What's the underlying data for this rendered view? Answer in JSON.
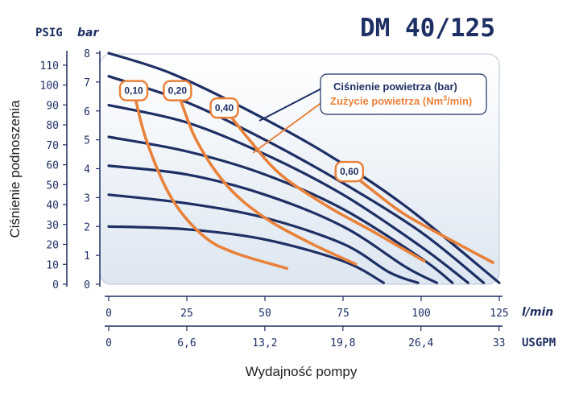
{
  "chart_data": {
    "type": "line",
    "title": "DM 40/125",
    "ylabel": "Ciśnienie podnoszenia",
    "xlabel": "Wydajność pompy",
    "y_units_left": "PSIG",
    "y_units_right": "bar",
    "x_units_primary": "l/min",
    "x_units_secondary": "USGPM",
    "xlim": [
      0,
      125
    ],
    "ylim": [
      0,
      8
    ],
    "y_ticks_bar": [
      "0",
      "1",
      "2",
      "3",
      "4",
      "5",
      "6",
      "7",
      "8"
    ],
    "y_ticks_psig": [
      "0",
      "10",
      "20",
      "30",
      "40",
      "50",
      "60",
      "70",
      "80",
      "90",
      "100",
      "110"
    ],
    "x_ticks_lmin": [
      "0",
      "25",
      "50",
      "75",
      "100",
      "125"
    ],
    "x_ticks_usgpm": [
      "0",
      "6,6",
      "13,2",
      "19,8",
      "26,4",
      "33"
    ],
    "legend": {
      "air_pressure": "Ciśnienie powietrza (bar)",
      "air_consumption_prefix": "Zużycie powietrza (Nm",
      "air_consumption_sup": "3",
      "air_consumption_suffix": "/min)"
    },
    "pressure_series": [
      {
        "points": [
          [
            0,
            8.0
          ],
          [
            20,
            7.3
          ],
          [
            45,
            6.0
          ],
          [
            70,
            4.5
          ],
          [
            95,
            2.7
          ],
          [
            125,
            0.05
          ]
        ]
      },
      {
        "points": [
          [
            0,
            7.2
          ],
          [
            25,
            6.3
          ],
          [
            50,
            5.0
          ],
          [
            75,
            3.5
          ],
          [
            100,
            1.8
          ],
          [
            120,
            0.05
          ]
        ]
      },
      {
        "points": [
          [
            0,
            6.2
          ],
          [
            25,
            5.6
          ],
          [
            50,
            4.5
          ],
          [
            75,
            3.1
          ],
          [
            100,
            1.3
          ],
          [
            115,
            0.05
          ]
        ]
      },
      {
        "points": [
          [
            0,
            5.1
          ],
          [
            25,
            4.6
          ],
          [
            50,
            3.8
          ],
          [
            75,
            2.6
          ],
          [
            100,
            0.9
          ],
          [
            110,
            0.05
          ]
        ]
      },
      {
        "points": [
          [
            0,
            4.1
          ],
          [
            25,
            3.8
          ],
          [
            50,
            3.1
          ],
          [
            75,
            2.0
          ],
          [
            95,
            0.6
          ],
          [
            105,
            0.05
          ]
        ]
      },
      {
        "points": [
          [
            0,
            3.1
          ],
          [
            25,
            2.8
          ],
          [
            50,
            2.3
          ],
          [
            75,
            1.4
          ],
          [
            90,
            0.4
          ],
          [
            99,
            0.05
          ]
        ]
      },
      {
        "points": [
          [
            0,
            2.0
          ],
          [
            25,
            1.9
          ],
          [
            50,
            1.55
          ],
          [
            75,
            0.8
          ],
          [
            88,
            0.05
          ]
        ]
      }
    ],
    "consumption_series": [
      {
        "label": "0,10",
        "points": [
          [
            8,
            6.7
          ],
          [
            12,
            5.0
          ],
          [
            20,
            3.0
          ],
          [
            30,
            1.7
          ],
          [
            40,
            1.1
          ],
          [
            57,
            0.55
          ]
        ]
      },
      {
        "label": "0,20",
        "points": [
          [
            22,
            6.7
          ],
          [
            28,
            5.0
          ],
          [
            38,
            3.4
          ],
          [
            50,
            2.3
          ],
          [
            65,
            1.4
          ],
          [
            79,
            0.7
          ]
        ]
      },
      {
        "label": "0,40",
        "points": [
          [
            37,
            6.1
          ],
          [
            45,
            5.0
          ],
          [
            55,
            3.8
          ],
          [
            70,
            2.7
          ],
          [
            85,
            1.8
          ],
          [
            101,
            0.8
          ]
        ]
      },
      {
        "label": "0,60",
        "points": [
          [
            77,
            3.9
          ],
          [
            85,
            3.2
          ],
          [
            95,
            2.4
          ],
          [
            110,
            1.5
          ],
          [
            123,
            0.75
          ]
        ]
      }
    ]
  }
}
